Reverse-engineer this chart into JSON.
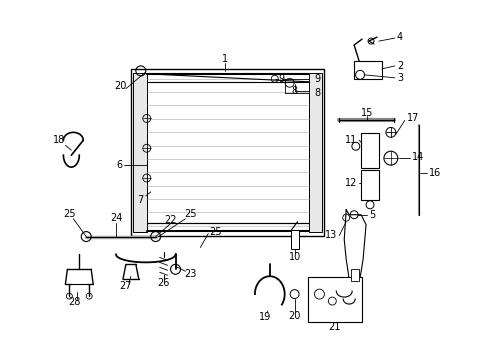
{
  "bg_color": "#ffffff",
  "fig_width": 4.89,
  "fig_height": 3.6,
  "dpi": 100,
  "font_size": 7.0,
  "line_color": "#000000"
}
